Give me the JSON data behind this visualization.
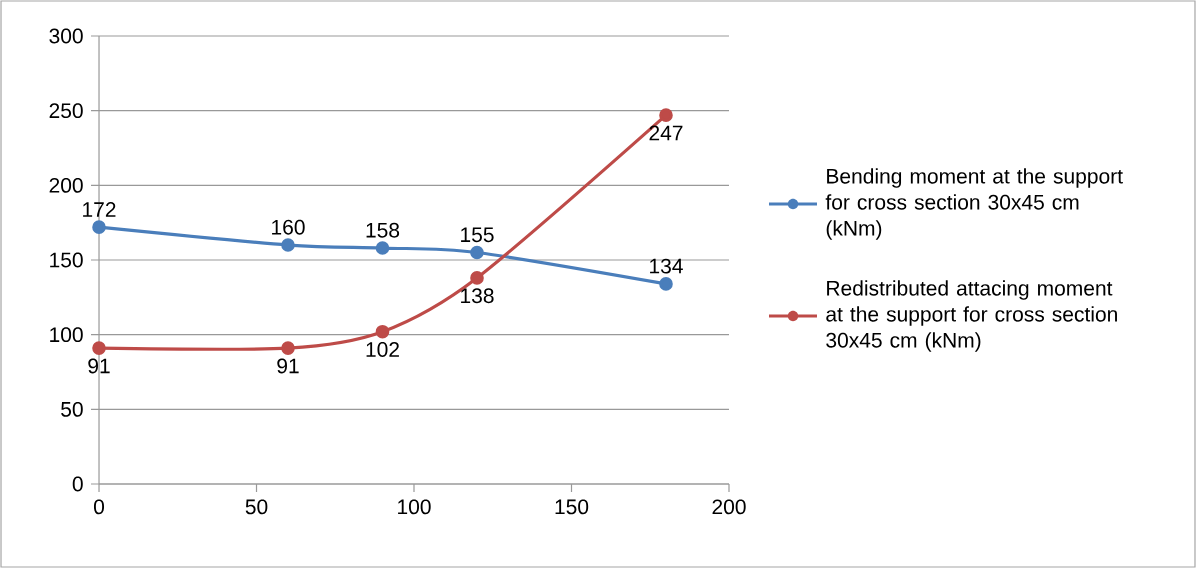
{
  "chart_data": {
    "type": "line",
    "x": [
      0,
      60,
      90,
      120,
      180
    ],
    "series": [
      {
        "name": "Bending moment at the support for cross section 30x45 cm (kNm)",
        "color": "#4a7ebb",
        "values": [
          172,
          160,
          158,
          155,
          134
        ]
      },
      {
        "name": "Redistributed attacing moment at the support for cross section 30x45 cm (kNm)",
        "color": "#be4b48",
        "values": [
          91,
          91,
          102,
          138,
          247
        ]
      }
    ],
    "xlim": [
      0,
      200
    ],
    "xticks": [
      0,
      50,
      100,
      150,
      200
    ],
    "ylim": [
      0,
      300
    ],
    "yticks": [
      0,
      50,
      100,
      150,
      200,
      250,
      300
    ],
    "grid": "y",
    "legend": "right",
    "marker": "circle",
    "line_style": "solid",
    "data_labels": true
  }
}
